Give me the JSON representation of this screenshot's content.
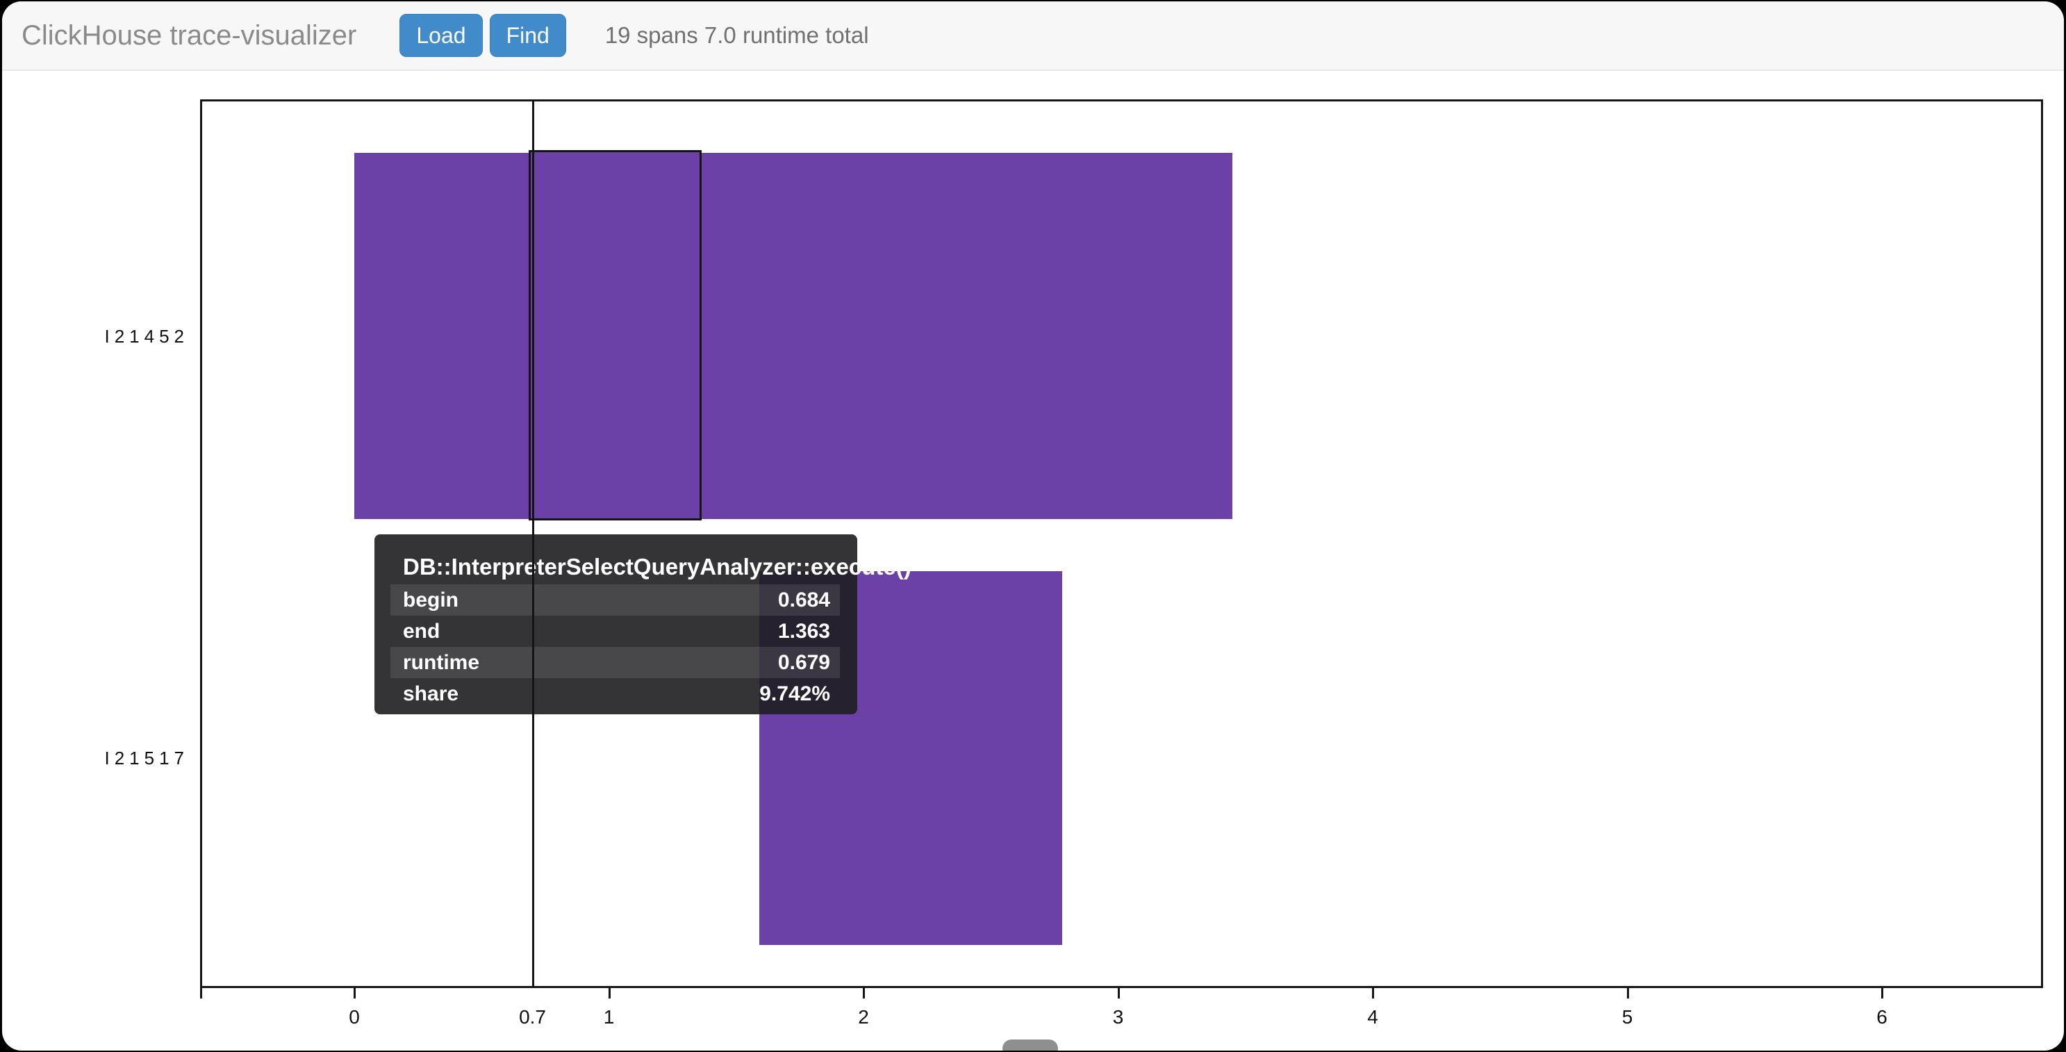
{
  "header": {
    "title": "ClickHouse trace-visualizer",
    "load_label": "Load",
    "find_label": "Find",
    "status": "19 spans 7.0 runtime total"
  },
  "tooltip": {
    "title": "DB::InterpreterSelectQueryAnalyzer::execute()",
    "rows": [
      {
        "name": "begin",
        "value": "0.684"
      },
      {
        "name": "end",
        "value": "1.363"
      },
      {
        "name": "runtime",
        "value": "0.679"
      },
      {
        "name": "share",
        "value": "9.742%"
      }
    ]
  },
  "chart_data": {
    "type": "bar",
    "subtype": "horizontal-span-timeline",
    "title": "",
    "xlabel": "",
    "ylabel": "",
    "categories": [
      "I21452",
      "I21517"
    ],
    "spans": [
      {
        "row": 0,
        "begin": 0.0,
        "end": 3.45
      },
      {
        "row": 0,
        "begin": 0.684,
        "end": 1.363,
        "highlighted": true,
        "name": "DB::InterpreterSelectQueryAnalyzer::execute()",
        "runtime": 0.679,
        "share": "9.742%"
      },
      {
        "row": 1,
        "begin": 1.59,
        "end": 2.78
      }
    ],
    "x_ticks": [
      0,
      1,
      2,
      3,
      4,
      5,
      6
    ],
    "x_range": [
      -0.6,
      6.64
    ],
    "cursor": {
      "x": 0.7,
      "label": "0.7"
    },
    "grid": false,
    "legend": "none"
  },
  "colors": {
    "accent": "#428bca",
    "accent_border": "#357ebd",
    "bar": "#6b41a8",
    "cursor": "#141414",
    "tooltip_bg": "rgba(30,30,32,0.9)",
    "tooltip_stripe": "rgba(255,255,255,0.10)"
  }
}
